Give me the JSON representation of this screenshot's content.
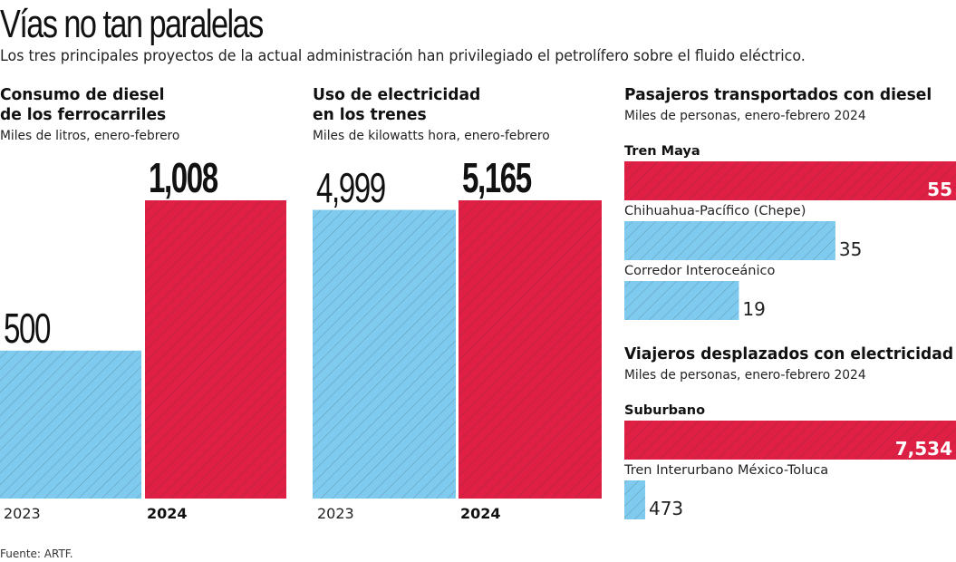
{
  "header": {
    "title": "Vías no tan paralelas",
    "subtitle": "Los tres principales proyectos de la actual administración han privilegiado el petrolífero sobre el fluido eléctrico."
  },
  "colors": {
    "blue": "#7ecbef",
    "red": "#e01f45",
    "hatch": "#3a3a3a"
  },
  "chart_data": [
    {
      "type": "bar",
      "title": "Consumo de diesel de los ferrocarriles",
      "title_lines": [
        "Consumo de diesel",
        "de los ferrocarriles"
      ],
      "subtitle": "Miles de litros, enero-febrero",
      "categories": [
        "2023",
        "2024"
      ],
      "values": [
        500,
        1008
      ],
      "value_labels": [
        "500",
        "1,008"
      ],
      "colors": [
        "blue",
        "red"
      ],
      "ylim": [
        0,
        1008
      ]
    },
    {
      "type": "bar",
      "title": "Uso de electricidad en los trenes",
      "title_lines": [
        "Uso de electricidad",
        "en los trenes"
      ],
      "subtitle": "Miles de kilowatts hora, enero-febrero",
      "categories": [
        "2023",
        "2024"
      ],
      "values": [
        4999,
        5165
      ],
      "value_labels": [
        "4,999",
        "5,165"
      ],
      "colors": [
        "blue",
        "red"
      ],
      "ylim": [
        0,
        5165
      ]
    },
    {
      "type": "bar",
      "orientation": "horizontal",
      "title": "Pasajeros transportados con diesel",
      "subtitle": "Miles de personas, enero-febrero 2024",
      "categories": [
        "Tren Maya",
        "Chihuahua-Pacífico (Chepe)",
        "Corredor Interoceánico"
      ],
      "values": [
        55,
        35,
        19
      ],
      "value_labels": [
        "55",
        "35",
        "19"
      ],
      "colors": [
        "red",
        "blue",
        "blue"
      ],
      "xlim": [
        0,
        55
      ]
    },
    {
      "type": "bar",
      "orientation": "horizontal",
      "title": "Viajeros desplazados con electricidad",
      "subtitle": "Miles de personas, enero-febrero 2024",
      "categories": [
        "Suburbano",
        "Tren Interurbano México-Toluca"
      ],
      "values": [
        7534,
        473
      ],
      "value_labels": [
        "7,534",
        "473"
      ],
      "colors": [
        "red",
        "blue"
      ],
      "xlim": [
        0,
        7534
      ]
    }
  ],
  "footer": {
    "source": "Fuente: ARTF."
  }
}
